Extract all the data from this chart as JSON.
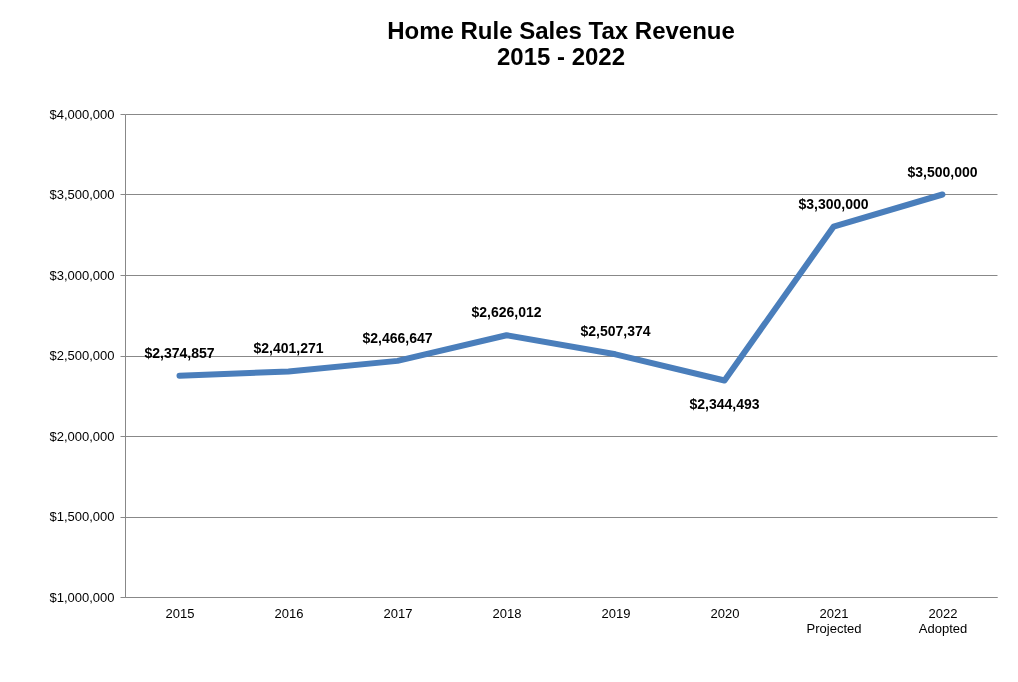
{
  "chart_data": {
    "type": "line",
    "title": "Home Rule Sales Tax Revenue\n2015 - 2022",
    "categories": [
      "2015",
      "2016",
      "2017",
      "2018",
      "2019",
      "2020",
      "2021\nProjected",
      "2022\nAdopted"
    ],
    "series": [
      {
        "color": "#4a7ebb",
        "values": [
          2374857,
          2401271,
          2466647,
          2626012,
          2507374,
          2344493,
          3300000,
          3500000
        ],
        "value_labels": [
          "$2,374,857",
          "$2,401,271",
          "$2,466,647",
          "$2,626,012",
          "$2,507,374",
          "$2,344,493",
          "$3,300,000",
          "$3,500,000"
        ]
      }
    ],
    "ylim": [
      1000000,
      4000000
    ],
    "yticks": [
      {
        "value": 1000000,
        "label": "$1,000,000"
      },
      {
        "value": 1500000,
        "label": "$1,500,000"
      },
      {
        "value": 2000000,
        "label": "$2,000,000"
      },
      {
        "value": 2500000,
        "label": "$2,500,000"
      },
      {
        "value": 3000000,
        "label": "$3,000,000"
      },
      {
        "value": 3500000,
        "label": "$3,500,000"
      },
      {
        "value": 4000000,
        "label": "$4,000,000"
      }
    ],
    "grid": "y",
    "marker": "none",
    "line_style": "solid"
  }
}
